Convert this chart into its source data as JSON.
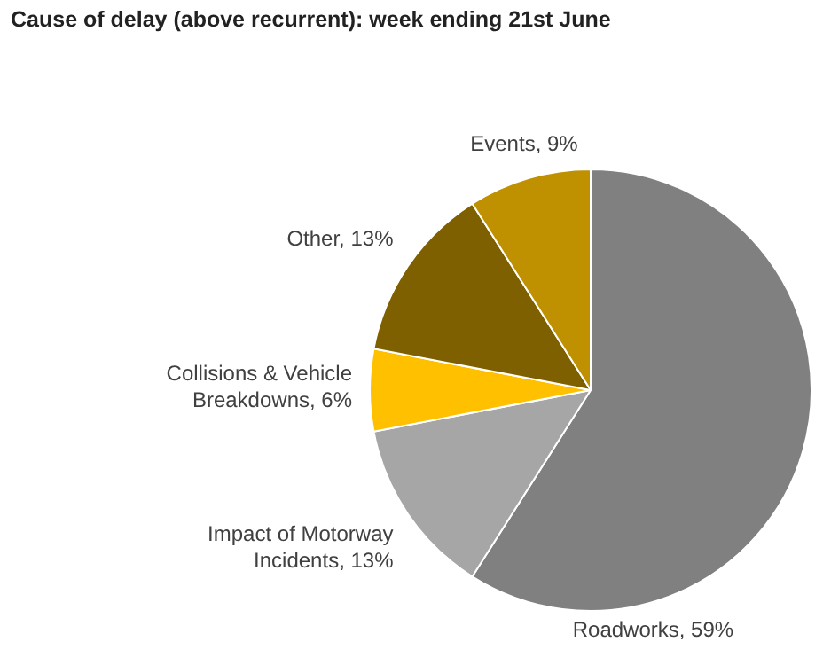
{
  "chart_data": {
    "type": "pie",
    "title": "Cause of delay (above recurrent): week ending 21st June",
    "categories": [
      "Roadworks",
      "Impact of Motorway Incidents",
      "Collisions & Vehicle Breakdowns",
      "Other",
      "Events"
    ],
    "values": [
      59,
      13,
      6,
      13,
      9
    ],
    "value_labels": [
      "59%",
      "13%",
      "6%",
      "13%",
      "9%"
    ],
    "colors": [
      "#808080",
      "#a6a6a6",
      "#ffc000",
      "#7f6000",
      "#bf9000"
    ],
    "legend": false
  }
}
